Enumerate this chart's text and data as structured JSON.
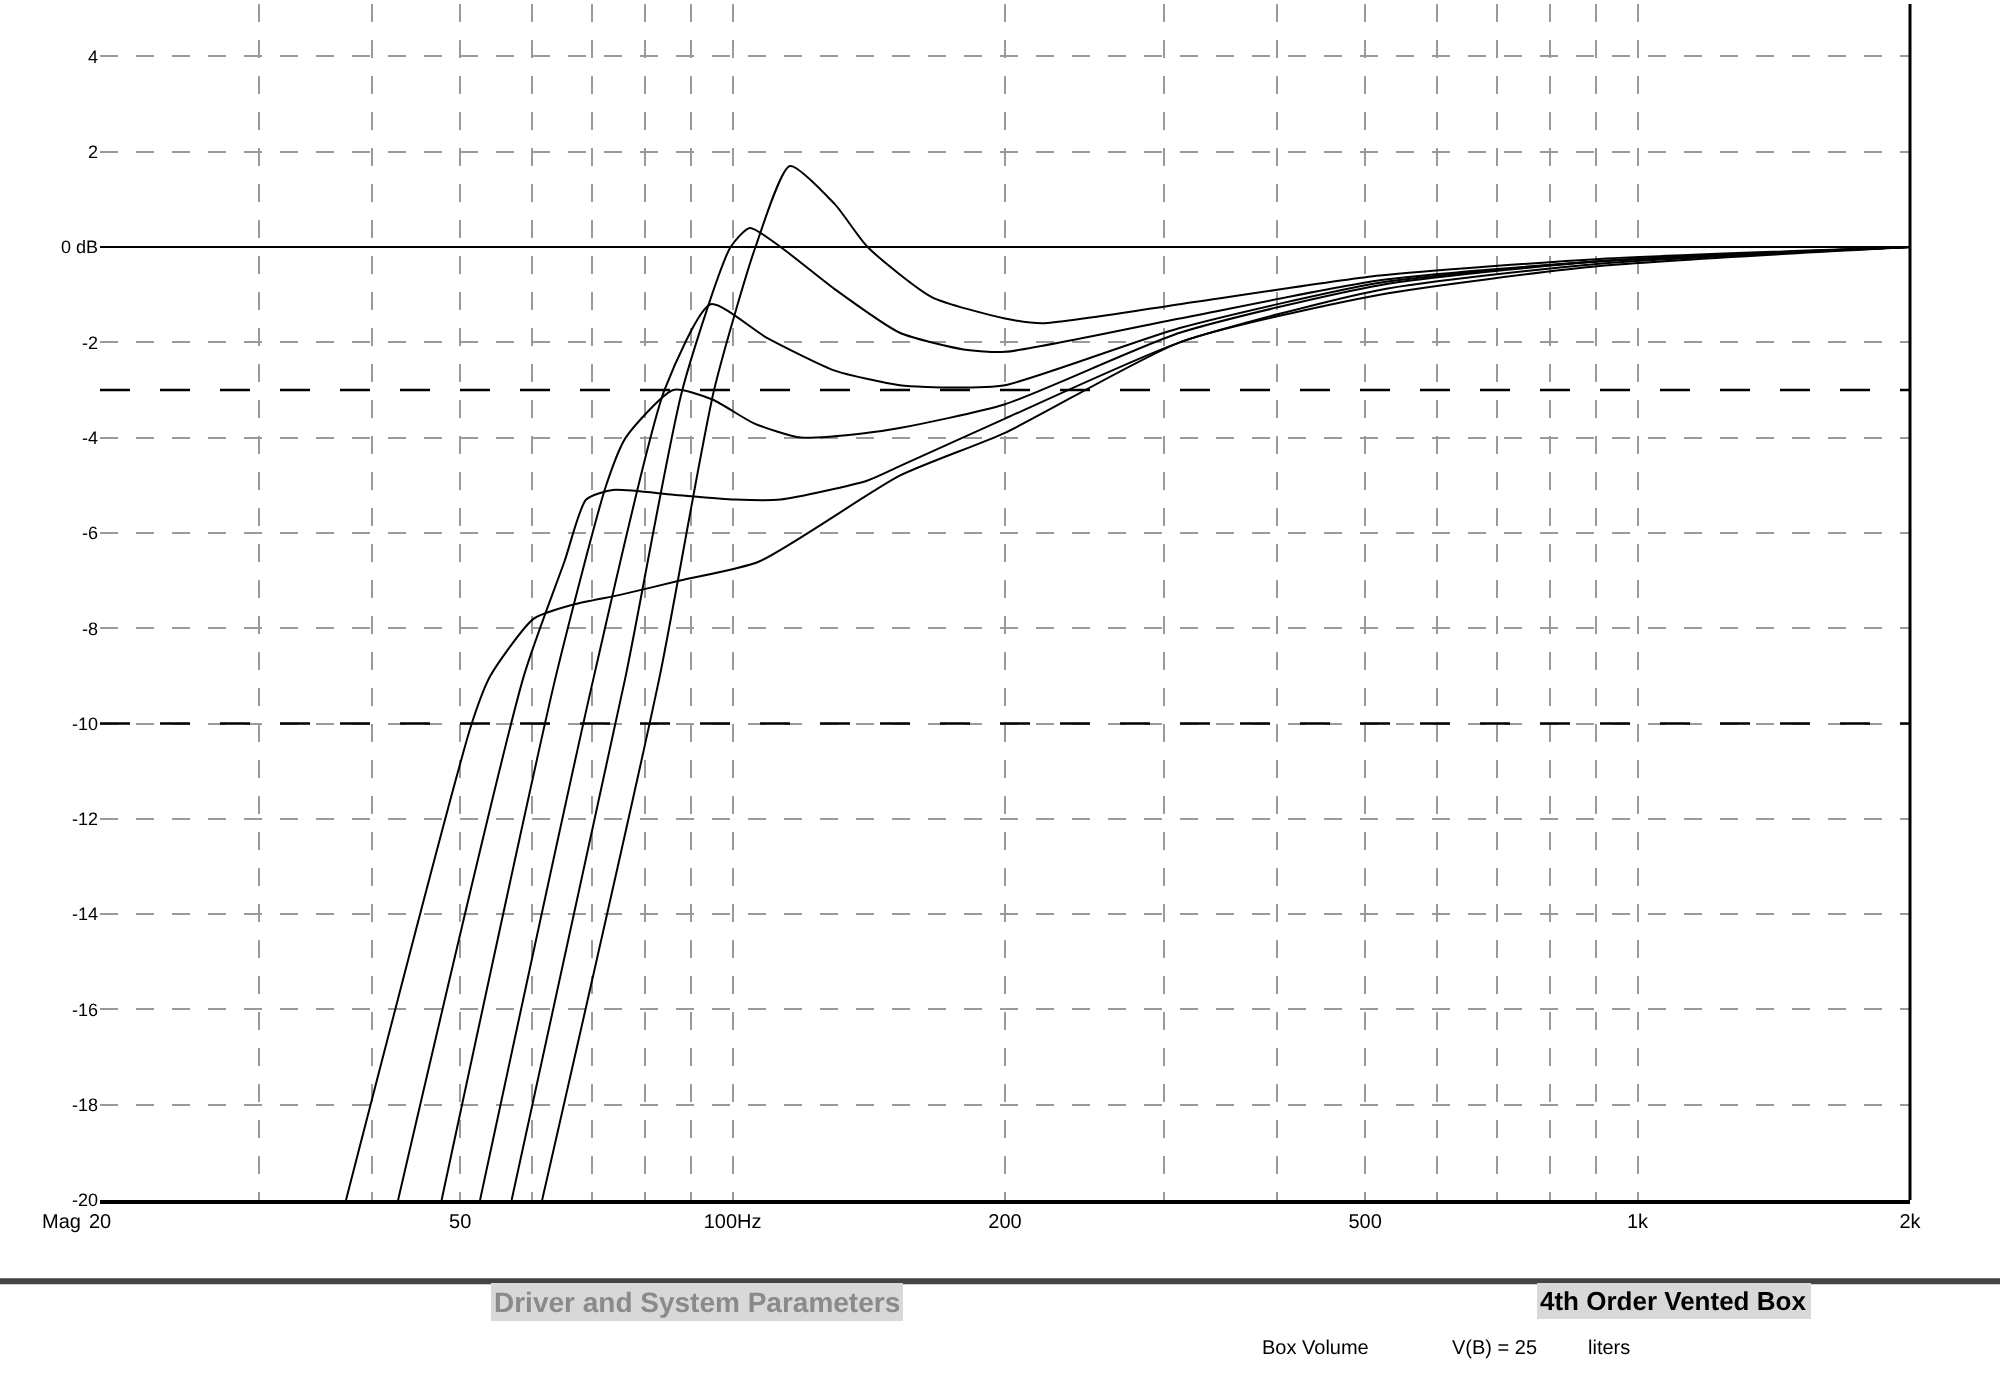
{
  "chart_data": {
    "type": "line",
    "ylabel": "Mag",
    "log": "x",
    "grid": true,
    "marker": "none",
    "line_style": "solid",
    "xlim": [
      20,
      2000
    ],
    "ylim": [
      -20,
      5.1
    ],
    "xticks": [
      20,
      {
        "value": 30,
        "label": null
      },
      {
        "value": 40,
        "label": null
      },
      50,
      {
        "value": 60,
        "label": null
      },
      {
        "value": 70,
        "label": null
      },
      {
        "value": 80,
        "label": null
      },
      {
        "value": 90,
        "label": null
      },
      {
        "value": 100,
        "label": "100Hz"
      },
      200,
      {
        "value": 300,
        "label": null
      },
      {
        "value": 400,
        "label": null
      },
      500,
      {
        "value": 600,
        "label": null
      },
      {
        "value": 700,
        "label": null
      },
      {
        "value": 800,
        "label": null
      },
      {
        "value": 900,
        "label": null
      },
      {
        "value": 1000,
        "label": "1k"
      },
      {
        "value": 2000,
        "label": "2k"
      }
    ],
    "yticks": [
      -20,
      -18,
      -16,
      -14,
      -12,
      -10,
      -8,
      -6,
      -4,
      -2,
      {
        "value": 0,
        "label": "0 dB"
      },
      2,
      4
    ],
    "ref_lines": [
      {
        "axis": "y",
        "value": 0,
        "label": null,
        "color": "#000000",
        "line_style": "solid"
      },
      {
        "axis": "y",
        "value": -3,
        "label": null,
        "color": "#000000",
        "line_style": "dashed"
      },
      {
        "axis": "y",
        "value": -10,
        "label": null,
        "color": "#000000",
        "line_style": "dashed"
      }
    ],
    "series": [
      {
        "color": "#000000",
        "x": [
          37.4,
          51.5,
          54.0,
          60.3,
          66.8,
          75.1,
          87.5,
          107,
          153,
          200,
          312,
          519,
          908,
          2000
        ],
        "values": [
          -20,
          -10,
          -9,
          -7.8,
          -7.5,
          -7.3,
          -7.0,
          -6.6,
          -4.8,
          -3.9,
          -2.0,
          -1.0,
          -0.4,
          0
        ]
      },
      {
        "color": "#000000",
        "x": [
          42.7,
          58.8,
          65.2,
          68.9,
          73.7,
          86.0,
          100.5,
          113,
          141,
          153,
          200,
          312,
          519,
          908,
          2000
        ],
        "values": [
          -20,
          -9,
          -6.6,
          -5.3,
          -5.1,
          -5.2,
          -5.3,
          -5.3,
          -4.9,
          -4.6,
          -3.6,
          -2.0,
          -0.9,
          -0.35,
          0
        ]
      },
      {
        "color": "#000000",
        "x": [
          47.7,
          63.8,
          72.5,
          76.2,
          86.0,
          95,
          105.6,
          119,
          141,
          153,
          200,
          312,
          519,
          908,
          2000
        ],
        "values": [
          -20,
          -9,
          -5.0,
          -4.0,
          -3.0,
          -3.2,
          -3.7,
          -4.0,
          -3.9,
          -3.8,
          -3.3,
          -1.8,
          -0.8,
          -0.3,
          0
        ]
      },
      {
        "color": "#000000",
        "x": [
          52.6,
          70.3,
          84.1,
          94.6,
          109,
          130,
          153,
          175,
          200,
          312,
          519,
          908,
          2000
        ],
        "values": [
          -20,
          -9,
          -3.0,
          -1.2,
          -1.9,
          -2.6,
          -2.9,
          -2.95,
          -2.9,
          -1.7,
          -0.75,
          -0.3,
          0
        ]
      },
      {
        "color": "#000000",
        "x": [
          57.0,
          76.2,
          88,
          99.5,
          104.5,
          113,
          130,
          153,
          180,
          200,
          312,
          519,
          908,
          2000
        ],
        "values": [
          -20,
          -9,
          -3.0,
          0,
          0.4,
          0,
          -0.9,
          -1.8,
          -2.15,
          -2.2,
          -1.5,
          -0.7,
          -0.3,
          0
        ]
      },
      {
        "color": "#000000",
        "x": [
          61.6,
          83.1,
          95.4,
          106,
          115.7,
          129.7,
          141,
          166,
          200,
          220,
          312,
          519,
          908,
          2000
        ],
        "values": [
          -20,
          -9,
          -3.0,
          0,
          1.7,
          0.9,
          0,
          -1.05,
          -1.5,
          -1.6,
          -1.2,
          -0.6,
          -0.25,
          0
        ]
      }
    ],
    "annotations": [
      "Driver and System Parameters",
      "4th Order Vented Box",
      "Box Volume",
      "V(B) = 25",
      "liters"
    ]
  }
}
